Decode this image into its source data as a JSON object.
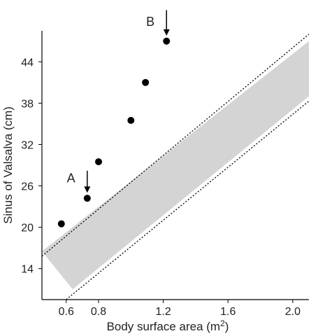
{
  "chart_data": {
    "type": "scatter",
    "xlabel": "Body surface area (m2)",
    "xlabel_main": "Body surface area (m",
    "xlabel_sup": "2",
    "xlabel_end": ")",
    "ylabel": "Sinus of Valsalva (cm)",
    "xlim": [
      0.45,
      2.1
    ],
    "ylim": [
      9.5,
      48.5
    ],
    "xticks": [
      0.6,
      0.8,
      1.2,
      1.6,
      2.0
    ],
    "xtick_labels": [
      "0.6",
      "0.8",
      "1.2",
      "1.6",
      "2.0"
    ],
    "yticks": [
      14,
      20,
      26,
      32,
      38,
      44
    ],
    "ytick_labels": [
      "14",
      "20",
      "26",
      "32",
      "38",
      "44"
    ],
    "grid": false,
    "points": [
      {
        "x": 0.57,
        "y": 20.5
      },
      {
        "x": 0.73,
        "y": 24.2
      },
      {
        "x": 0.8,
        "y": 29.5
      },
      {
        "x": 1.0,
        "y": 35.5
      },
      {
        "x": 1.09,
        "y": 41.0
      },
      {
        "x": 1.22,
        "y": 47.0
      }
    ],
    "normal_band": {
      "upper": [
        [
          0.45,
          16.5
        ],
        [
          2.1,
          47.0
        ]
      ],
      "lower": [
        [
          0.64,
          11.0
        ],
        [
          2.1,
          39.0
        ]
      ],
      "fill": "#d4d4d4"
    },
    "dotted_limits": [
      {
        "from": [
          0.45,
          15.8
        ],
        "to": [
          2.1,
          48.0
        ]
      },
      {
        "from": [
          0.6,
          9.5
        ],
        "to": [
          2.1,
          38.3
        ]
      }
    ],
    "annotations": [
      {
        "label": "A",
        "x": 0.73,
        "arrow_top": 28.2,
        "arrow_tip": 25.0,
        "label_x": 0.63,
        "label_y": 26.5
      },
      {
        "label": "B",
        "x": 1.22,
        "arrow_top": 51.5,
        "arrow_tip": 47.8,
        "label_x": 1.12,
        "label_y": 49.2
      }
    ]
  }
}
